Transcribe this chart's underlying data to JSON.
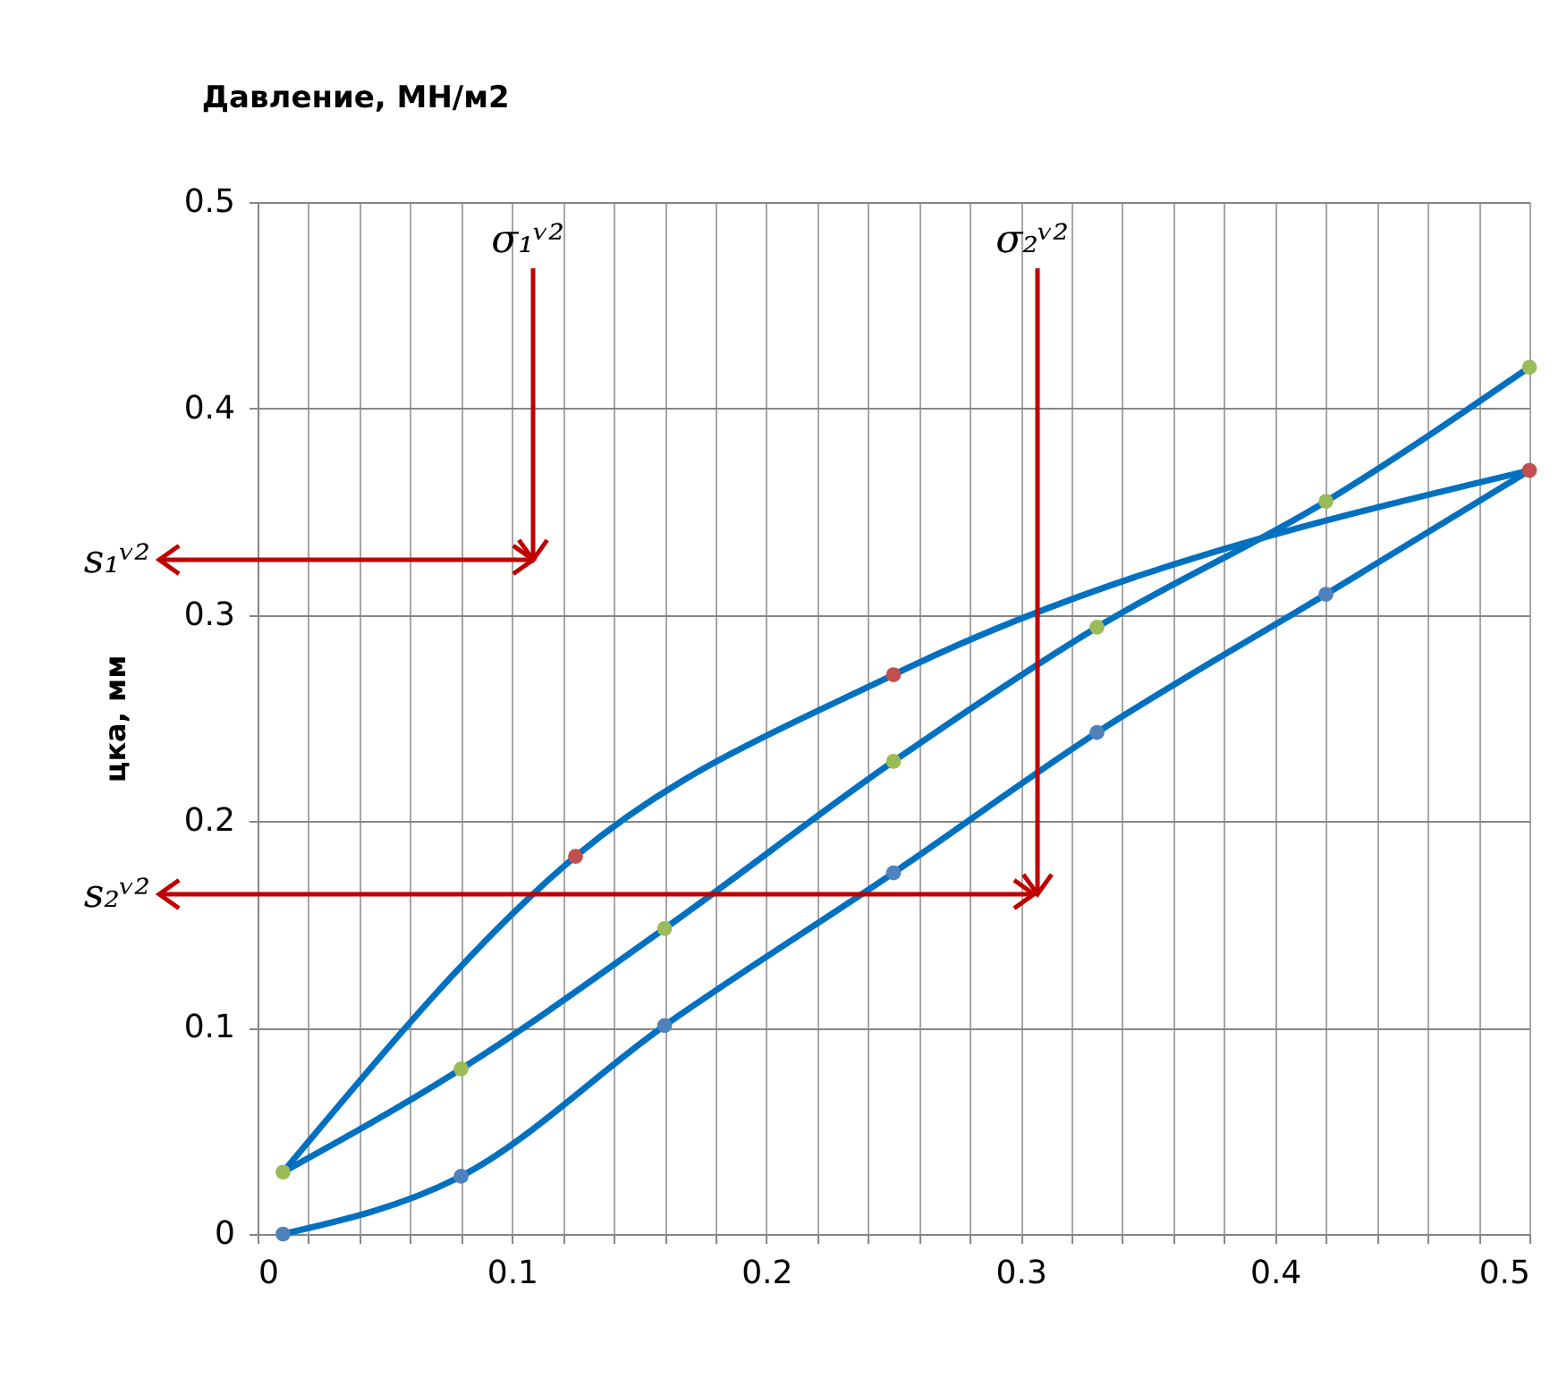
{
  "chart_data": {
    "type": "line",
    "title": "Давление, МН/м2",
    "ylabel": "цка, мм",
    "xlim": [
      0,
      0.5
    ],
    "ylim": [
      0,
      0.5
    ],
    "xticks": [
      0,
      {
        "value": 0.02,
        "label": null
      },
      {
        "value": 0.04,
        "label": null
      },
      {
        "value": 0.06,
        "label": null
      },
      {
        "value": 0.08,
        "label": null
      },
      0.1,
      {
        "value": 0.12,
        "label": null
      },
      {
        "value": 0.14,
        "label": null
      },
      {
        "value": 0.16,
        "label": null
      },
      {
        "value": 0.18,
        "label": null
      },
      0.2,
      {
        "value": 0.22,
        "label": null
      },
      {
        "value": 0.24,
        "label": null
      },
      {
        "value": 0.26,
        "label": null
      },
      {
        "value": 0.28,
        "label": null
      },
      0.3,
      {
        "value": 0.32,
        "label": null
      },
      {
        "value": 0.34,
        "label": null
      },
      {
        "value": 0.36,
        "label": null
      },
      {
        "value": 0.38,
        "label": null
      },
      0.4,
      {
        "value": 0.42,
        "label": null
      },
      {
        "value": 0.44,
        "label": null
      },
      {
        "value": 0.46,
        "label": null
      },
      {
        "value": 0.48,
        "label": null
      },
      0.5
    ],
    "yticks": [
      0,
      0.1,
      0.2,
      0.3,
      0.4,
      0.5
    ],
    "grid": true,
    "series": [
      {
        "color": "#0070c0",
        "marker": "none",
        "x": [
          0.01,
          0.125,
          0.25,
          0.5
        ],
        "values": [
          0.03,
          0.183,
          0.271,
          0.37
        ]
      },
      {
        "color": "#0070c0",
        "marker": "none",
        "x": [
          0.01,
          0.08,
          0.16,
          0.25,
          0.33,
          0.42,
          0.5
        ],
        "values": [
          0.03,
          0.08,
          0.148,
          0.229,
          0.294,
          0.355,
          0.42
        ]
      },
      {
        "color": "#0070c0",
        "marker": "none",
        "x": [
          0.01,
          0.08,
          0.16,
          0.25,
          0.33,
          0.42,
          0.5
        ],
        "values": [
          0,
          0.028,
          0.101,
          0.175,
          0.243,
          0.31,
          0.37
        ]
      },
      {
        "type": "scatter",
        "color": "#c0504d",
        "marker": "circle",
        "x": [
          0.125,
          0.25,
          0.5
        ],
        "values": [
          0.183,
          0.271,
          0.37
        ]
      },
      {
        "type": "scatter",
        "color": "#9bbb59",
        "marker": "circle",
        "x": [
          0.01,
          0.08,
          0.16,
          0.25,
          0.33,
          0.42,
          0.5
        ],
        "values": [
          0.03,
          0.08,
          0.148,
          0.229,
          0.294,
          0.355,
          0.42
        ]
      },
      {
        "type": "scatter",
        "color": "#4f81bd",
        "marker": "circle",
        "x": [
          0.01,
          0.08,
          0.16,
          0.25,
          0.33,
          0.42
        ],
        "values": [
          0,
          0.028,
          0.101,
          0.175,
          0.243,
          0.31
        ]
      }
    ],
    "annotations": [
      "σ₁ᵛ²",
      "s₁ᵛ²",
      "σ₂ᵛ²",
      "s₂ᵛ²"
    ]
  }
}
